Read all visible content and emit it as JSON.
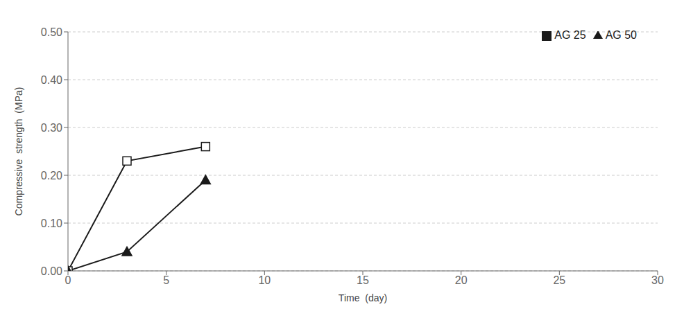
{
  "chart_data": {
    "type": "line",
    "xlabel": "Time  (day)",
    "ylabel": "Compressive  strength  (MPa)",
    "x": [
      0,
      3,
      7
    ],
    "series": [
      {
        "name": "AG 25",
        "values": [
          0.0,
          0.23,
          0.26
        ],
        "color": "#1a1a1a",
        "marker": "square"
      },
      {
        "name": "AG 50",
        "values": [
          0.0,
          0.04,
          0.19
        ],
        "color": "#1a1a1a",
        "marker": "triangle"
      }
    ],
    "xlim": [
      0,
      30
    ],
    "ylim": [
      0.0,
      0.5
    ],
    "xticks": [
      0,
      5,
      10,
      15,
      20,
      25,
      30
    ],
    "yticks": [
      {
        "value": 0,
        "label": "0.00"
      },
      {
        "value": 0.1,
        "label": "0.10"
      },
      {
        "value": 0.2,
        "label": "0.20"
      },
      {
        "value": 0.3,
        "label": "0.30"
      },
      {
        "value": 0.4,
        "label": "0.40"
      },
      {
        "value": 0.5,
        "label": "0.50"
      }
    ],
    "grid": "y",
    "legend": "upper right"
  }
}
